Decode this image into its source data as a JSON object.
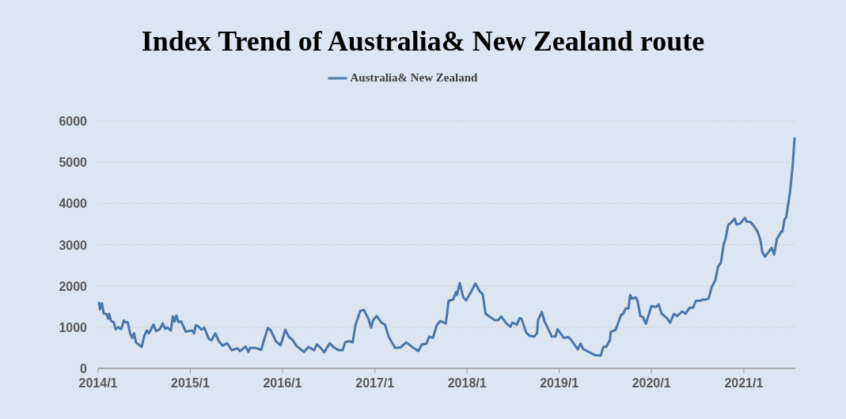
{
  "chart_data": {
    "type": "line",
    "title": "Index Trend of Australia& New Zealand route",
    "x": [
      "2014-01-05",
      "2014-01-08",
      "2014-01-16",
      "2014-01-23",
      "2014-02-03",
      "2014-02-10",
      "2014-02-14",
      "2014-02-21",
      "2014-03-04",
      "2014-03-11",
      "2014-03-22",
      "2014-04-02",
      "2014-04-13",
      "2014-04-17",
      "2014-04-28",
      "2014-05-09",
      "2014-05-16",
      "2014-05-23",
      "2014-05-31",
      "2014-06-22",
      "2014-07-03",
      "2014-07-13",
      "2014-07-21",
      "2014-07-28",
      "2014-08-08",
      "2014-08-19",
      "2014-09-03",
      "2014-09-14",
      "2014-09-24",
      "2014-10-02",
      "2014-10-16",
      "2014-10-24",
      "2014-10-31",
      "2014-11-07",
      "2014-11-15",
      "2014-11-26",
      "2014-12-14",
      "2015-01-08",
      "2015-01-16",
      "2015-01-23",
      "2015-02-03",
      "2015-02-14",
      "2015-02-25",
      "2015-03-15",
      "2015-03-26",
      "2015-04-10",
      "2015-04-24",
      "2015-05-09",
      "2015-05-27",
      "2015-06-14",
      "2015-07-06",
      "2015-07-17",
      "2015-08-08",
      "2015-08-19",
      "2015-08-26",
      "2015-09-14",
      "2015-10-09",
      "2015-10-20",
      "2015-11-04",
      "2015-11-15",
      "2015-12-06",
      "2015-12-25",
      "2016-01-12",
      "2016-01-27",
      "2016-02-10",
      "2016-02-25",
      "2016-03-26",
      "2016-04-13",
      "2016-05-05",
      "2016-05-16",
      "2016-05-31",
      "2016-06-14",
      "2016-07-06",
      "2016-07-24",
      "2016-08-12",
      "2016-08-26",
      "2016-09-06",
      "2016-09-24",
      "2016-10-05",
      "2016-10-16",
      "2016-11-04",
      "2016-11-18",
      "2016-12-06",
      "2016-12-17",
      "2016-12-25",
      "2017-01-08",
      "2017-01-27",
      "2017-02-10",
      "2017-02-25",
      "2017-03-22",
      "2017-04-13",
      "2017-05-05",
      "2017-05-31",
      "2017-06-22",
      "2017-07-06",
      "2017-07-24",
      "2017-08-04",
      "2017-08-19",
      "2017-09-03",
      "2017-09-17",
      "2017-10-09",
      "2017-10-20",
      "2017-11-07",
      "2017-11-18",
      "2017-11-22",
      "2017-12-03",
      "2017-12-17",
      "2017-12-28",
      "2018-01-19",
      "2018-02-03",
      "2018-02-21",
      "2018-03-04",
      "2018-03-15",
      "2018-03-30",
      "2018-04-21",
      "2018-05-05",
      "2018-05-16",
      "2018-06-07",
      "2018-06-22",
      "2018-06-29",
      "2018-07-17",
      "2018-07-28",
      "2018-08-04",
      "2018-08-23",
      "2018-09-06",
      "2018-09-24",
      "2018-10-05",
      "2018-10-09",
      "2018-10-24",
      "2018-11-04",
      "2018-12-03",
      "2018-12-17",
      "2018-12-25",
      "2019-01-19",
      "2019-02-07",
      "2019-02-21",
      "2019-03-15",
      "2019-03-26",
      "2019-04-06",
      "2019-04-28",
      "2019-05-23",
      "2019-06-14",
      "2019-06-25",
      "2019-07-06",
      "2019-07-21",
      "2019-07-24",
      "2019-08-12",
      "2019-09-03",
      "2019-09-10",
      "2019-09-21",
      "2019-10-02",
      "2019-10-09",
      "2019-10-16",
      "2019-10-31",
      "2019-11-07",
      "2019-11-18",
      "2019-11-29",
      "2019-12-10",
      "2020-01-01",
      "2020-01-19",
      "2020-01-30",
      "2020-02-10",
      "2020-03-04",
      "2020-03-15",
      "2020-03-30",
      "2020-04-13",
      "2020-05-01",
      "2020-05-16",
      "2020-05-31",
      "2020-06-14",
      "2020-06-25",
      "2020-07-13",
      "2020-07-21",
      "2020-08-04",
      "2020-08-15",
      "2020-08-26",
      "2020-09-10",
      "2020-09-21",
      "2020-10-02",
      "2020-10-13",
      "2020-10-20",
      "2020-10-31",
      "2020-11-11",
      "2020-11-26",
      "2020-12-03",
      "2020-12-17",
      "2021-01-05",
      "2021-01-12",
      "2021-01-27",
      "2021-02-10",
      "2021-02-25",
      "2021-03-08",
      "2021-03-15",
      "2021-03-26",
      "2021-04-21",
      "2021-05-01",
      "2021-05-12",
      "2021-05-31",
      "2021-06-03",
      "2021-06-11",
      "2021-06-18",
      "2021-06-29",
      "2021-07-03",
      "2021-07-13",
      "2021-07-21"
    ],
    "series": [
      {
        "name": "Australia& New Zealand",
        "color": "#4a76a8",
        "values": [
          1590,
          1430,
          1580,
          1330,
          1320,
          1210,
          1320,
          1150,
          1120,
          950,
          1000,
          950,
          1160,
          1120,
          1120,
          820,
          740,
          850,
          630,
          520,
          790,
          920,
          850,
          930,
          1060,
          900,
          960,
          1090,
          960,
          990,
          920,
          1260,
          1140,
          1280,
          1120,
          1140,
          890,
          920,
          850,
          1050,
          1010,
          940,
          990,
          720,
          680,
          850,
          660,
          550,
          610,
          440,
          490,
          420,
          530,
          400,
          500,
          500,
          450,
          690,
          980,
          930,
          660,
          560,
          940,
          760,
          690,
          550,
          400,
          520,
          440,
          580,
          500,
          390,
          610,
          500,
          440,
          440,
          640,
          660,
          630,
          1050,
          1390,
          1420,
          1210,
          990,
          1170,
          1270,
          1110,
          1060,
          760,
          500,
          510,
          630,
          510,
          420,
          580,
          600,
          770,
          740,
          1050,
          1150,
          1090,
          1640,
          1670,
          1850,
          1780,
          2070,
          1720,
          1650,
          1880,
          2060,
          1860,
          1800,
          1330,
          1260,
          1170,
          1170,
          1260,
          1080,
          1010,
          1110,
          1060,
          1220,
          1210,
          870,
          790,
          770,
          850,
          1170,
          1370,
          1140,
          770,
          770,
          950,
          740,
          760,
          660,
          460,
          600,
          470,
          400,
          320,
          310,
          520,
          520,
          690,
          890,
          930,
          1300,
          1310,
          1450,
          1450,
          1780,
          1690,
          1720,
          1640,
          1270,
          1240,
          1080,
          1510,
          1490,
          1550,
          1330,
          1210,
          1110,
          1320,
          1270,
          1380,
          1330,
          1470,
          1470,
          1640,
          1640,
          1670,
          1670,
          1700,
          1960,
          2140,
          2470,
          2560,
          3000,
          3130,
          3480,
          3530,
          3630,
          3490,
          3510,
          3650,
          3560,
          3550,
          3450,
          3310,
          3100,
          2820,
          2710,
          2920,
          2760,
          3140,
          3330,
          3320,
          3610,
          3670,
          4120,
          4280,
          4890,
          5580
        ]
      }
    ],
    "xlim": [
      "2014-01-01",
      "2021-07-24"
    ],
    "xticks": [
      {
        "value": "2014-01-01",
        "label": "2014/1"
      },
      {
        "value": "2015-01-01",
        "label": "2015/1"
      },
      {
        "value": "2016-01-01",
        "label": "2016/1"
      },
      {
        "value": "2017-01-01",
        "label": "2017/1"
      },
      {
        "value": "2018-01-01",
        "label": "2018/1"
      },
      {
        "value": "2019-01-01",
        "label": "2019/1"
      },
      {
        "value": "2020-01-01",
        "label": "2020/1"
      },
      {
        "value": "2021-01-01",
        "label": "2021/1"
      }
    ],
    "ylim": [
      0,
      6000
    ],
    "yticks": [
      0,
      1000,
      2000,
      3000,
      4000,
      5000,
      6000
    ],
    "grid": "y",
    "legend": "top",
    "marker": "none",
    "line_style": "solid"
  }
}
